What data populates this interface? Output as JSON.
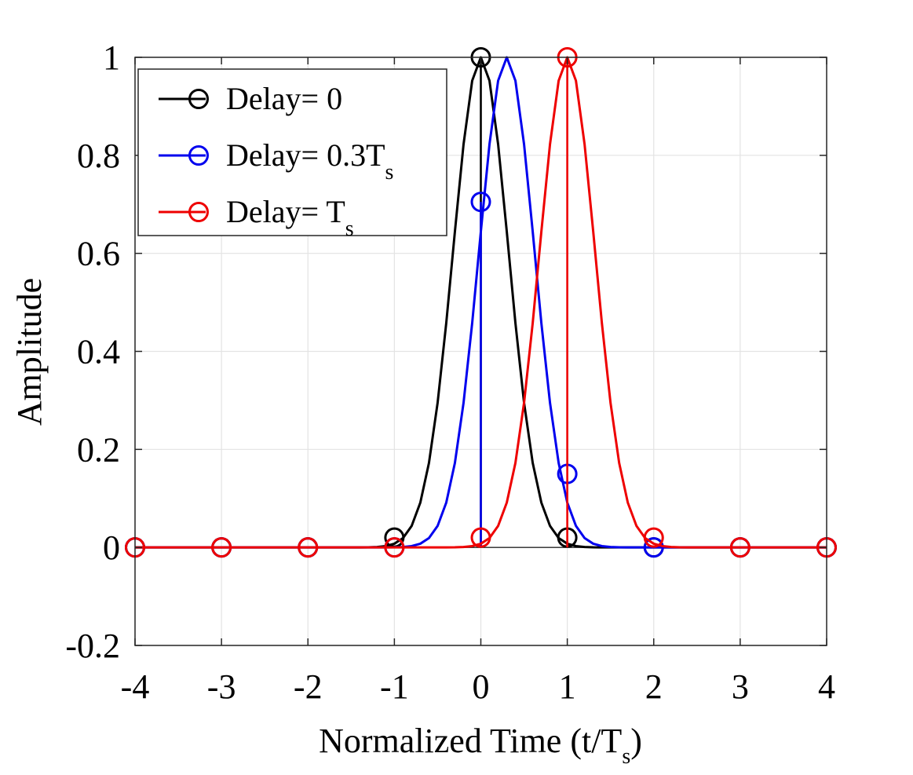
{
  "chart_data": {
    "type": "line",
    "xlabel": "Normalized Time (t/T",
    "xlabel_sub": "s",
    "xlabel_tail": ")",
    "ylabel": "Amplitude",
    "xlim": [
      -4,
      4
    ],
    "ylim": [
      -0.2,
      1
    ],
    "xticks": [
      -4,
      -3,
      -2,
      -1,
      0,
      1,
      2,
      3,
      4
    ],
    "xtick_labels": [
      "-4",
      "-3",
      "-2",
      "-1",
      "0",
      "1",
      "2",
      "3",
      "4"
    ],
    "yticks": [
      -0.2,
      0,
      0.2,
      0.4,
      0.6,
      0.8,
      1
    ],
    "ytick_labels": [
      "-0.2",
      "0",
      "0.2",
      "0.4",
      "0.6",
      "0.8",
      "1"
    ],
    "grid": true,
    "legend_position": "top-left",
    "series": [
      {
        "name": "Delay= 0",
        "label_main": "Delay= 0",
        "label_sub": "",
        "color": "#000000",
        "pulse_center": 0,
        "pulse_sigma": 0.32,
        "peak": 1,
        "samples": {
          "x": [
            -4,
            -3,
            -2,
            -1,
            0,
            1,
            2,
            3,
            4
          ],
          "y": [
            0,
            0,
            0,
            0.02,
            1,
            0.02,
            0,
            0,
            0
          ]
        }
      },
      {
        "name": "Delay= 0.3Ts",
        "label_main": "Delay= 0.3T",
        "label_sub": "s",
        "color": "#0000ee",
        "pulse_center": 0.3,
        "pulse_sigma": 0.32,
        "peak": 1,
        "samples": {
          "x": [
            -4,
            -3,
            -2,
            -1,
            0,
            1,
            2,
            3,
            4
          ],
          "y": [
            0,
            0,
            0,
            0,
            0.705,
            0.15,
            0,
            0,
            0
          ]
        }
      },
      {
        "name": "Delay= Ts",
        "label_main": "Delay= T",
        "label_sub": "s",
        "color": "#ee0000",
        "pulse_center": 1,
        "pulse_sigma": 0.32,
        "peak": 1,
        "samples": {
          "x": [
            -4,
            -3,
            -2,
            -1,
            0,
            1,
            2,
            3,
            4
          ],
          "y": [
            0,
            0,
            0,
            0,
            0.02,
            1,
            0.02,
            0,
            0
          ]
        }
      }
    ]
  }
}
